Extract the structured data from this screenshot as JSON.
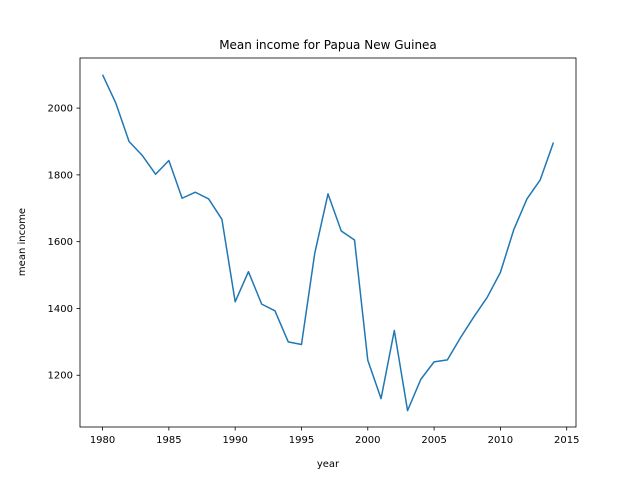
{
  "chart_data": {
    "type": "line",
    "title": "Mean income for Papua New Guinea",
    "xlabel": "year",
    "ylabel": "mean income",
    "xlim": [
      1978.3,
      2015.7
    ],
    "ylim": [
      1045,
      2150
    ],
    "xticks": [
      1980,
      1985,
      1990,
      1995,
      2000,
      2005,
      2010,
      2015
    ],
    "yticks": [
      1200,
      1400,
      1600,
      1800,
      2000
    ],
    "grid": false,
    "color": "#1f77b4",
    "series": [
      {
        "x": [
          1980,
          1981,
          1982,
          1983,
          1984,
          1985,
          1986,
          1987,
          1988,
          1989,
          1990,
          1991,
          1992,
          1993,
          1994,
          1995,
          1996,
          1997,
          1998,
          1999,
          2000,
          2001,
          2002,
          2003,
          2004,
          2005,
          2006,
          2007,
          2008,
          2009,
          2010,
          2011,
          2012,
          2013,
          2014
        ],
        "values": [
          2100,
          2015,
          1900,
          1858,
          1802,
          1843,
          1730,
          1748,
          1728,
          1667,
          1420,
          1510,
          1413,
          1393,
          1300,
          1292,
          1565,
          1743,
          1632,
          1605,
          1245,
          1130,
          1334,
          1094,
          1188,
          1240,
          1246,
          1313,
          1375,
          1433,
          1508,
          1635,
          1728,
          1785,
          1897
        ]
      }
    ]
  }
}
